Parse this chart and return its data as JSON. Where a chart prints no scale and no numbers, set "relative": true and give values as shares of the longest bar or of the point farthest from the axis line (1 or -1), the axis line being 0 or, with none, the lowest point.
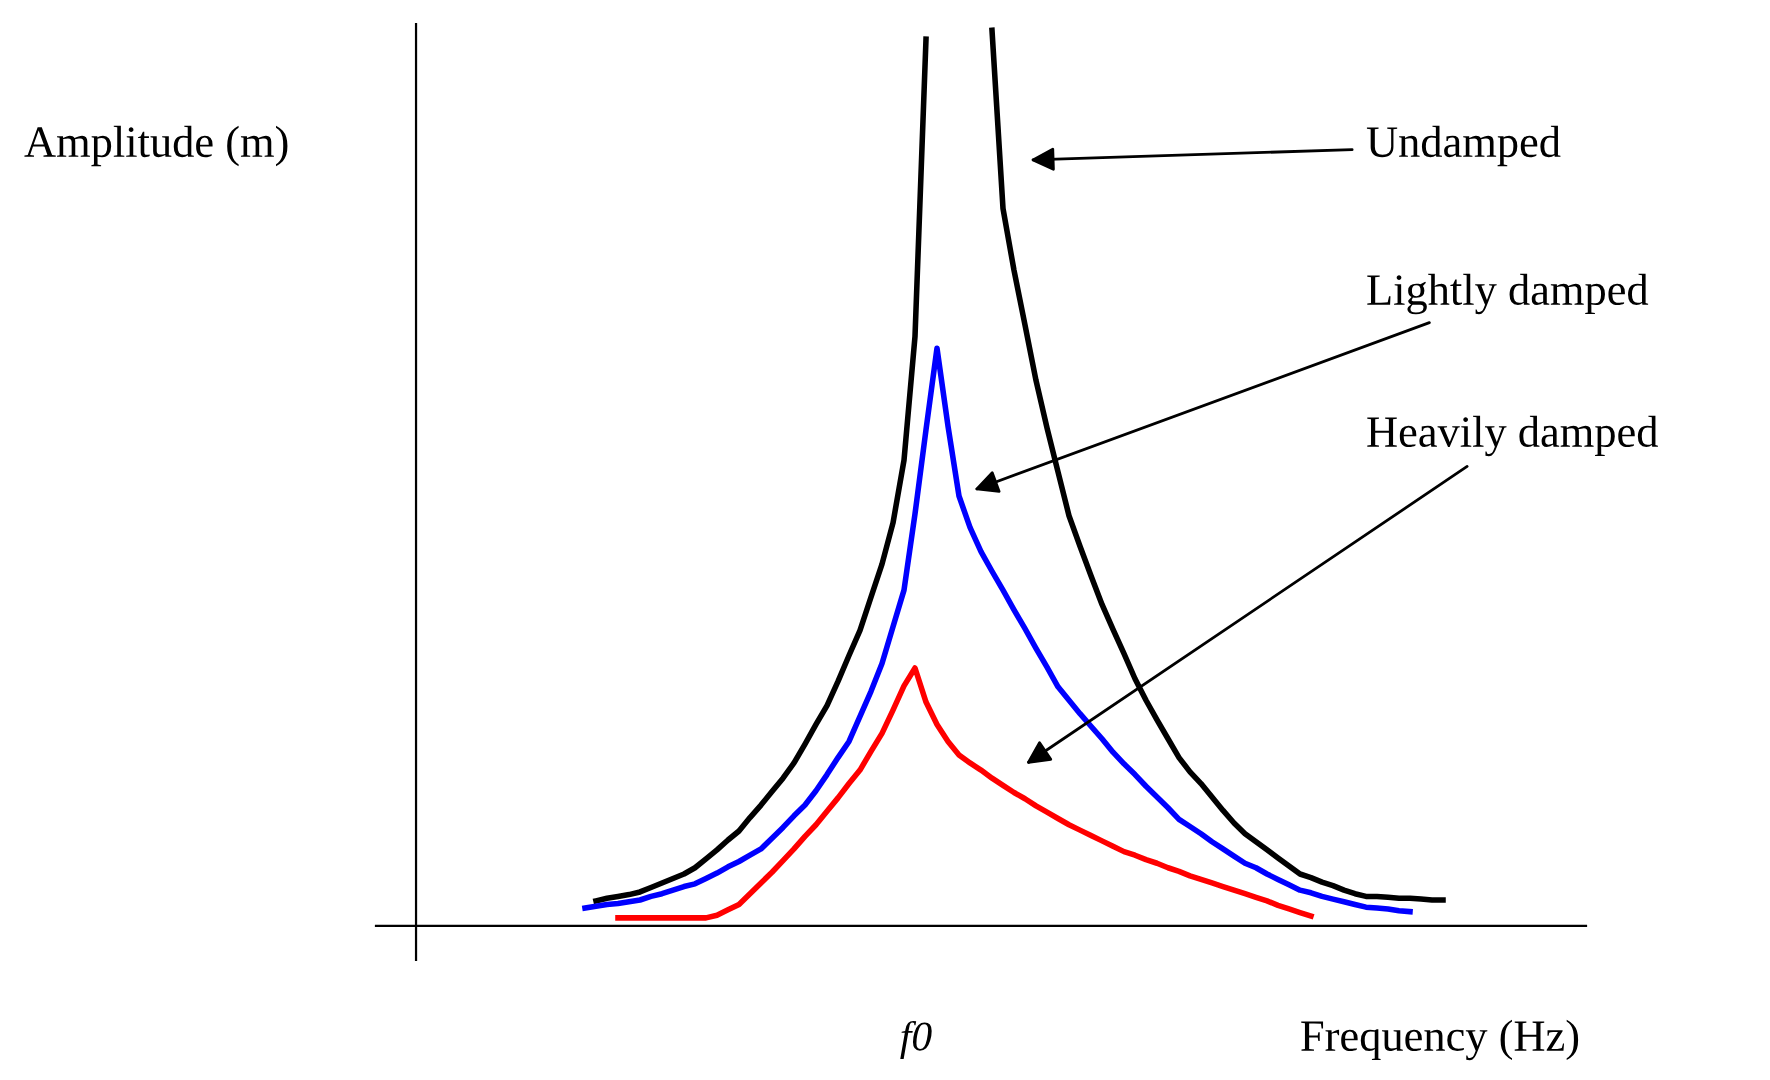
{
  "chart_data": {
    "type": "line",
    "relative": true,
    "xlabel": "Frequency (Hz)",
    "marker": "none",
    "line_style": "solid",
    "categories": [
      null,
      null,
      null,
      null,
      null,
      null,
      null,
      null,
      null,
      null,
      null,
      null,
      null,
      null,
      null,
      null,
      null,
      null,
      null,
      null,
      null,
      null,
      null,
      null,
      null,
      null,
      null,
      null,
      null,
      null,
      null,
      null,
      null,
      null,
      null,
      null,
      null,
      null,
      null,
      null,
      null,
      null,
      null,
      null,
      null,
      null,
      null,
      null,
      null,
      null,
      null,
      null,
      null,
      null,
      null,
      null,
      null,
      null,
      null,
      null,
      null,
      null,
      null,
      null,
      null,
      null,
      null,
      null,
      null,
      null,
      null,
      null,
      null,
      null,
      null,
      null,
      null,
      null,
      null
    ],
    "series": [
      {
        "color": "#000000",
        "values": [
          null,
          0.028,
          0.031,
          0.033,
          0.035,
          0.038,
          0.043,
          0.048,
          0.053,
          0.058,
          0.065,
          0.075,
          0.085,
          0.096,
          0.106,
          0.121,
          0.135,
          0.15,
          0.165,
          0.182,
          0.203,
          0.225,
          0.246,
          0.273,
          0.302,
          0.33,
          0.367,
          0.404,
          0.45,
          0.52,
          0.658,
          0.99,
          null,
          null,
          null,
          null,
          null,
          1.0,
          0.801,
          0.732,
          0.671,
          0.609,
          0.556,
          0.507,
          0.458,
          0.424,
          0.391,
          0.359,
          0.331,
          0.304,
          0.276,
          0.252,
          0.23,
          0.209,
          0.188,
          0.172,
          0.159,
          0.144,
          0.129,
          0.115,
          0.103,
          0.094,
          0.085,
          0.076,
          0.067,
          0.058,
          0.054,
          0.049,
          0.045,
          0.04,
          0.036,
          0.033,
          0.033,
          0.032,
          0.031,
          0.031,
          0.03,
          0.029,
          0.029
        ]
      },
      {
        "color": "#0000ff",
        "values": [
          0.02,
          0.022,
          0.024,
          0.025,
          0.027,
          0.029,
          0.033,
          0.036,
          0.04,
          0.044,
          0.047,
          0.053,
          0.059,
          0.066,
          0.072,
          0.079,
          0.086,
          0.098,
          0.11,
          0.123,
          0.135,
          0.151,
          0.169,
          0.188,
          0.206,
          0.234,
          0.262,
          0.293,
          0.334,
          0.375,
          0.46,
          0.554,
          0.645,
          0.558,
          0.48,
          0.445,
          0.418,
          0.396,
          0.375,
          0.353,
          0.332,
          0.31,
          0.289,
          0.267,
          0.252,
          0.237,
          0.223,
          0.209,
          0.194,
          0.181,
          0.169,
          0.156,
          0.144,
          0.132,
          0.119,
          0.111,
          0.103,
          0.094,
          0.086,
          0.078,
          0.07,
          0.065,
          0.058,
          0.052,
          0.046,
          0.04,
          0.037,
          0.033,
          0.03,
          0.027,
          0.024,
          0.021,
          0.02,
          0.019,
          0.017,
          0.016,
          null,
          null,
          null
        ]
      },
      {
        "color": "#ff0000",
        "values": [
          null,
          null,
          null,
          0.009,
          0.009,
          0.009,
          0.009,
          0.009,
          0.009,
          0.009,
          0.009,
          0.009,
          0.012,
          0.018,
          0.024,
          0.036,
          0.048,
          0.06,
          0.073,
          0.086,
          0.1,
          0.113,
          0.128,
          0.143,
          0.159,
          0.174,
          0.195,
          0.215,
          0.241,
          0.268,
          0.288,
          0.25,
          0.225,
          0.206,
          0.191,
          0.182,
          0.174,
          0.165,
          0.157,
          0.149,
          0.142,
          0.134,
          0.127,
          0.12,
          0.113,
          0.107,
          0.101,
          0.095,
          0.089,
          0.083,
          0.079,
          0.074,
          0.07,
          0.065,
          0.061,
          0.056,
          0.052,
          0.048,
          0.044,
          0.04,
          0.036,
          0.032,
          0.028,
          0.023,
          0.019,
          0.015,
          0.011,
          null,
          null,
          null,
          null,
          null,
          null,
          null,
          null,
          null,
          null,
          null,
          null
        ]
      }
    ],
    "annotations": [
      "Amplitude (m)",
      "f0",
      "Undamped",
      "Lightly damped",
      "Heavily damped"
    ]
  }
}
